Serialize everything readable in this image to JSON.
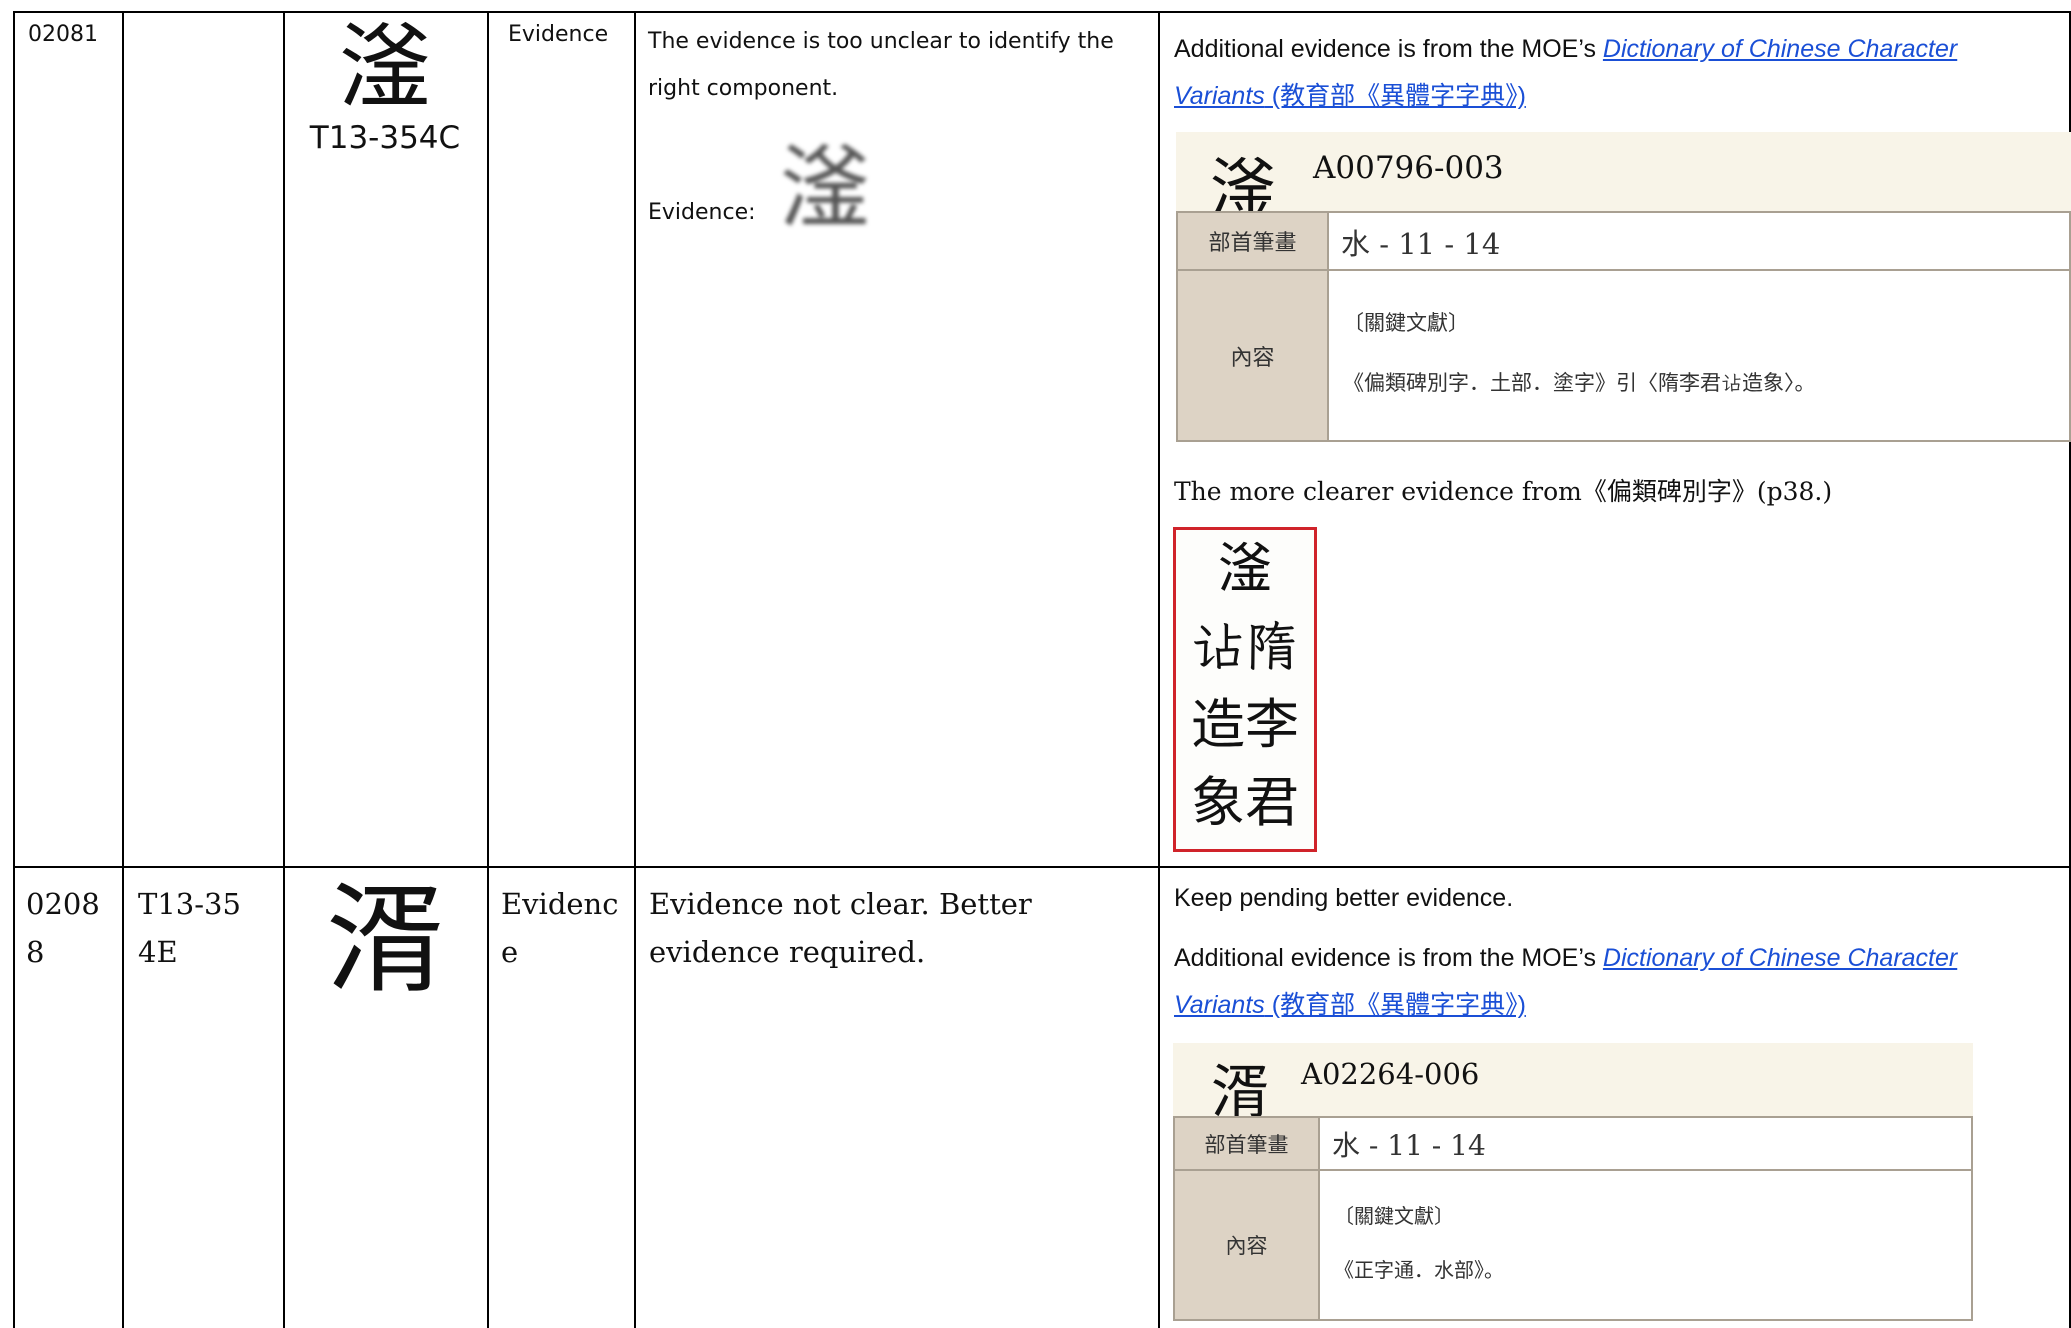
{
  "rows": [
    {
      "id": "02081",
      "source": "",
      "glyph": "滏",
      "glyph_code": "T13-354C",
      "type": "Evidence",
      "description": "The evidence is too unclear to identify the right component.",
      "evidence_label": "Evidence:",
      "response": {
        "note": "",
        "intro": "Additional evidence is from the MOE’s ",
        "link": "Dictionary of Chinese Character Variants",
        "link_suffix": " (教育部《異體字字典》)",
        "dict": {
          "glyph": "滏",
          "code": "A00796-003",
          "stroke_label": "部首筆畫",
          "stroke_value": "水 - 11 - 14",
          "content_label": "內容",
          "content_lines": [
            "〔關鍵文獻〕",
            "《偏類碑別字．土部．塗字》引〈隋李君𧮪造象〉。"
          ]
        },
        "more": "The more clearer evidence from《偏類碑別字》(p38.)",
        "rubbing": [
          "滏",
          "𧮪隋",
          "造李",
          "象君"
        ]
      }
    },
    {
      "id": "02088",
      "source": "T13-354E",
      "glyph": "湑",
      "glyph_code": "",
      "type": "Evidence",
      "description": "Evidence not clear. Better evidence required.",
      "evidence_label": "",
      "response": {
        "note": "Keep pending better evidence.",
        "intro": "Additional evidence is from the MOE’s ",
        "link": "Dictionary of Chinese Character Variants",
        "link_suffix": " (教育部《異體字字典》)",
        "dict": {
          "glyph": "湑",
          "code": "A02264-006",
          "stroke_label": "部首筆畫",
          "stroke_value": "水 - 11 - 14",
          "content_label": "內容",
          "content_lines": [
            "〔關鍵文獻〕",
            "《正字通．水部》。"
          ]
        },
        "more": "",
        "rubbing": []
      }
    }
  ]
}
